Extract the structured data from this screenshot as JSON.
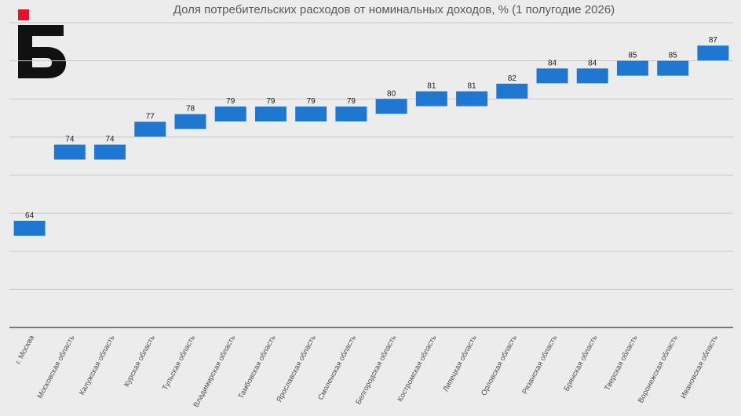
{
  "chart_data": {
    "type": "bar",
    "title": "Доля потребительских расходов от номинальных доходов, % (1 полугодие 2026)",
    "categories": [
      "г. Москва",
      "Московская область",
      "Калужская область",
      "Курская область",
      "Тульская область",
      "Владимирская область",
      "Тамбовская область",
      "Ярославская область",
      "Смоленская область",
      "Белгородская область",
      "Костромская область",
      "Липецкая область",
      "Орловская область",
      "Рязанская область",
      "Брянская область",
      "Тверская область",
      "Воронежская область",
      "Ивановская область"
    ],
    "values": [
      64,
      74,
      74,
      77,
      78,
      79,
      79,
      79,
      79,
      80,
      81,
      81,
      82,
      84,
      84,
      85,
      85,
      87
    ],
    "data_labels": [
      "64",
      "74",
      "74",
      "77",
      "78",
      "79",
      "79",
      "79",
      "79",
      "80",
      "81",
      "81",
      "82",
      "84",
      "84",
      "85",
      "85",
      "87"
    ],
    "ylim": [
      50,
      90
    ],
    "grid": true,
    "legend": "none",
    "bar_color": "#1f77d0",
    "grid_color": "#c8c8c8",
    "axis_color": "#555555"
  },
  "logo": {
    "name": "logo-icon",
    "colors": {
      "square": "#e8102e",
      "letter": "#111111"
    }
  }
}
